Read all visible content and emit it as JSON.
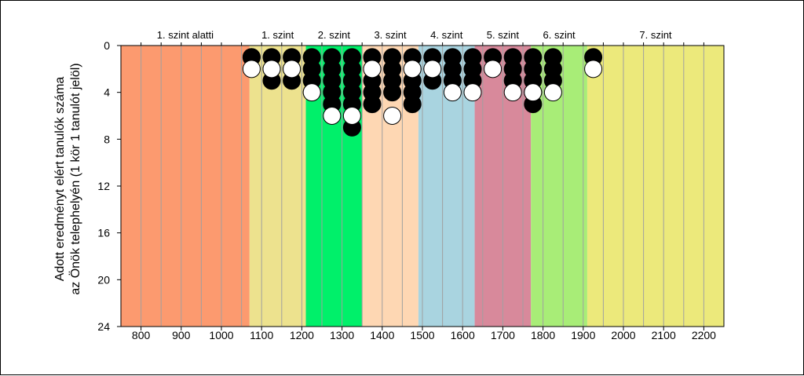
{
  "chart_data": {
    "type": "scatter",
    "xlim": [
      750,
      2250
    ],
    "ylim": [
      0,
      24
    ],
    "y_inverted": true,
    "ylabel_lines": [
      "Adott eredményt elért tanulók száma",
      "az Önök telephelyén (1 kör 1 tanulót jelöl)"
    ],
    "xticks": [
      "800",
      "900",
      "1000",
      "1100",
      "1200",
      "1300",
      "1400",
      "1500",
      "1600",
      "1700",
      "1800",
      "1900",
      "2000",
      "2100",
      "2200"
    ],
    "yticks": [
      "0",
      "4",
      "8",
      "12",
      "16",
      "20",
      "24"
    ],
    "grid_x": true,
    "levels": [
      {
        "label": "1. szint alatti",
        "from": 750,
        "to": 1070,
        "color": "#fc9a6f"
      },
      {
        "label": "1. szint",
        "from": 1070,
        "to": 1210,
        "color": "#ede28e"
      },
      {
        "label": "2. szint",
        "from": 1210,
        "to": 1350,
        "color": "#00f06a"
      },
      {
        "label": "3. szint",
        "from": 1350,
        "to": 1490,
        "color": "#fed7b3"
      },
      {
        "label": "4. szint",
        "from": 1490,
        "to": 1630,
        "color": "#a9d4e0"
      },
      {
        "label": "5. szint",
        "from": 1630,
        "to": 1770,
        "color": "#d8899b"
      },
      {
        "label": "6. szint",
        "from": 1770,
        "to": 1910,
        "color": "#a8ed77"
      },
      {
        "label": "7. szint",
        "from": 1910,
        "to": 2250,
        "color": "#ece97b"
      }
    ],
    "series": [
      {
        "marker_fill": "#000000",
        "x": [
          1075,
          1075,
          1125,
          1125,
          1125,
          1175,
          1175,
          1175,
          1225,
          1225,
          1225,
          1225,
          1275,
          1275,
          1275,
          1275,
          1275,
          1325,
          1325,
          1325,
          1325,
          1325,
          1325,
          1375,
          1375,
          1375,
          1375,
          1375,
          1425,
          1425,
          1425,
          1425,
          1475,
          1475,
          1475,
          1475,
          1475,
          1525,
          1525,
          1525,
          1575,
          1575,
          1575,
          1625,
          1625,
          1625,
          1675,
          1725,
          1725,
          1725,
          1775,
          1775,
          1775,
          1775,
          1775,
          1825,
          1825,
          1825,
          1925
        ],
        "y": [
          1,
          1,
          1,
          2,
          3,
          1,
          2,
          3,
          1,
          2,
          3,
          4,
          1,
          2,
          3,
          4,
          5,
          1,
          2,
          3,
          4,
          5,
          7,
          1,
          2,
          3,
          4,
          5,
          1,
          2,
          3,
          4,
          1,
          2,
          3,
          4,
          5,
          1,
          2,
          3,
          1,
          2,
          3,
          1,
          2,
          3,
          1,
          1,
          2,
          3,
          1,
          2,
          3,
          4,
          5,
          1,
          2,
          3,
          1
        ]
      },
      {
        "marker_fill": "#ffffff",
        "x": [
          1075,
          1125,
          1175,
          1225,
          1275,
          1325,
          1375,
          1425,
          1475,
          1525,
          1575,
          1625,
          1675,
          1725,
          1775,
          1825,
          1925
        ],
        "y": [
          2,
          2,
          2,
          4,
          6,
          6,
          2,
          6,
          2,
          2,
          4,
          4,
          2,
          4,
          4,
          4,
          2
        ]
      }
    ]
  }
}
